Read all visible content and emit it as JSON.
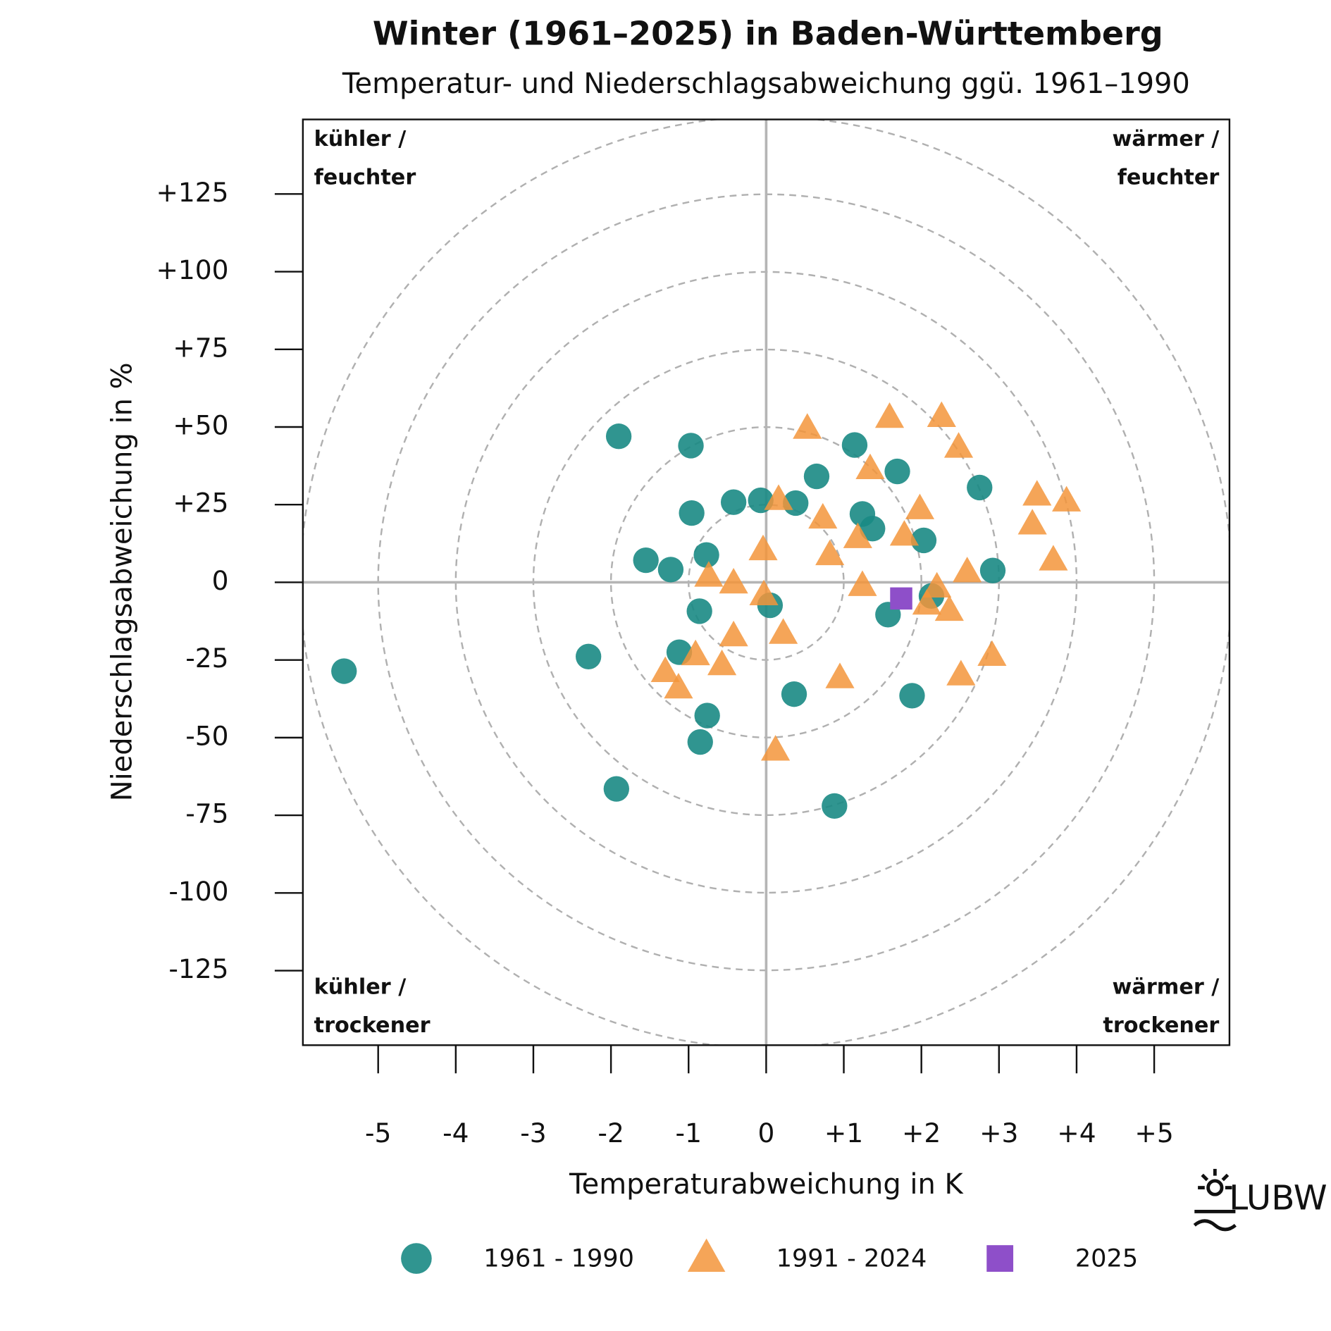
{
  "chart_data": {
    "type": "scatter",
    "title": "Winter (1961–2025) in Baden-Württemberg",
    "subtitle": "Temperatur- und Niederschlagsabweichung ggü. 1961–1990",
    "x_label": "Temperaturabweichung in K",
    "y_label": "Niederschlagsabweichung in %",
    "xlim": [
      -5.97,
      5.97
    ],
    "ylim": [
      -149,
      149
    ],
    "xticks": [
      -5,
      -4,
      -3,
      -2,
      -1,
      0,
      {
        "value": 1,
        "label": "+1"
      },
      {
        "value": 2,
        "label": "+2"
      },
      {
        "value": 3,
        "label": "+3"
      },
      {
        "value": 4,
        "label": "+4"
      },
      {
        "value": 5,
        "label": "+5"
      }
    ],
    "yticks": [
      {
        "value": -125,
        "label": "-125"
      },
      {
        "value": -100,
        "label": "-100"
      },
      {
        "value": -75,
        "label": "-75"
      },
      {
        "value": -50,
        "label": "-50"
      },
      {
        "value": -25,
        "label": "-25"
      },
      0,
      {
        "value": 25,
        "label": "+25"
      },
      {
        "value": 50,
        "label": "+50"
      },
      {
        "value": 75,
        "label": "+75"
      },
      {
        "value": 100,
        "label": "+100"
      },
      {
        "value": 125,
        "label": "+125"
      }
    ],
    "rings": [
      1,
      2,
      3,
      4,
      5,
      6
    ],
    "quadrant_labels": [
      {
        "corner": "top-left",
        "lines": [
          "kühler /",
          "feuchter"
        ]
      },
      {
        "corner": "top-right",
        "lines": [
          "wärmer /",
          "feuchter"
        ]
      },
      {
        "corner": "bottom-left",
        "lines": [
          "kühler /",
          "trockener"
        ]
      },
      {
        "corner": "bottom-right",
        "lines": [
          "wärmer /",
          "trockener"
        ]
      }
    ],
    "logo": "LUBW",
    "series": [
      {
        "name": "1961 - 1990",
        "marker": "circle",
        "color": "#1a8a84",
        "x": [
          -1.9,
          -0.97,
          1.14,
          0.65,
          1.69,
          2.75,
          -0.42,
          -0.07,
          0.38,
          -0.96,
          1.24,
          1.37,
          2.03,
          -0.77,
          -1.55,
          -1.23,
          2.92,
          2.13,
          0.05,
          -0.86,
          1.57,
          -1.12,
          -2.29,
          -5.44,
          0.36,
          1.88,
          -0.76,
          -0.85,
          -1.93,
          0.88
        ],
        "values": [
          47.0,
          44.0,
          44.2,
          34.1,
          35.7,
          30.5,
          25.8,
          26.4,
          25.5,
          22.3,
          22.0,
          17.3,
          13.5,
          8.8,
          7.1,
          4.1,
          3.8,
          -4.4,
          -7.4,
          -9.3,
          -10.4,
          -22.5,
          -23.9,
          -28.6,
          -36.0,
          -36.5,
          -42.9,
          -51.4,
          -66.5,
          -72.0
        ]
      },
      {
        "name": "1991 - 2024",
        "marker": "triangle",
        "color": "#f3953b",
        "x": [
          0.53,
          1.59,
          2.26,
          2.48,
          1.34,
          3.49,
          3.87,
          0.16,
          0.73,
          1.98,
          3.43,
          1.18,
          1.78,
          -0.04,
          0.82,
          3.7,
          2.59,
          -0.74,
          -0.42,
          1.24,
          2.2,
          -0.03,
          2.07,
          2.36,
          0.22,
          -0.42,
          -0.91,
          2.91,
          -0.57,
          -1.3,
          0.95,
          2.51,
          -1.13,
          0.12
        ],
        "values": [
          49.5,
          53.0,
          53.3,
          43.4,
          36.5,
          28.0,
          26.1,
          26.6,
          20.6,
          23.6,
          18.7,
          14.3,
          15.1,
          10.4,
          8.8,
          7.1,
          3.3,
          1.9,
          -0.3,
          -1.1,
          -1.6,
          -4.1,
          -7.1,
          -9.1,
          -16.5,
          -17.3,
          -23.4,
          -23.6,
          -26.6,
          -28.8,
          -30.8,
          -29.9,
          -34.1,
          -54.1
        ]
      },
      {
        "name": "2025",
        "marker": "square",
        "color": "#8e4fc9",
        "x": [
          1.74
        ],
        "values": [
          -5.2
        ]
      }
    ]
  }
}
